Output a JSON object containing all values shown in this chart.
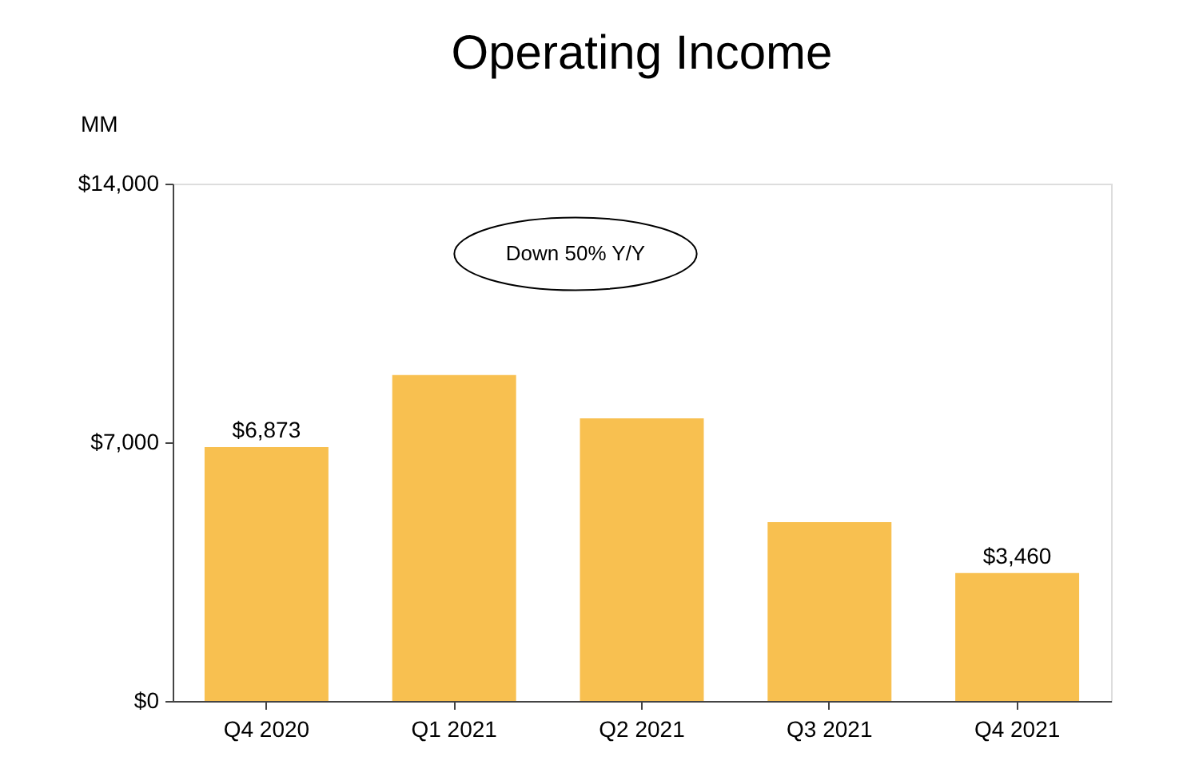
{
  "chart_data": {
    "type": "bar",
    "title": "Operating Income",
    "ylabel": "MM",
    "categories": [
      "Q4 2020",
      "Q1 2021",
      "Q2 2021",
      "Q3 2021",
      "Q4 2021"
    ],
    "values": [
      6873,
      8820,
      7650,
      4840,
      3460
    ],
    "color": "#f8c050",
    "value_labels": [
      "$6,873",
      null,
      null,
      null,
      "$3,460"
    ],
    "ylim": [
      0,
      14000
    ],
    "yticks": [
      {
        "value": 0,
        "label": "$0"
      },
      {
        "value": 7000,
        "label": "$7,000"
      },
      {
        "value": 14000,
        "label": "$14,000"
      }
    ],
    "annotations": [
      "Down 50% Y/Y"
    ],
    "grid": false
  }
}
